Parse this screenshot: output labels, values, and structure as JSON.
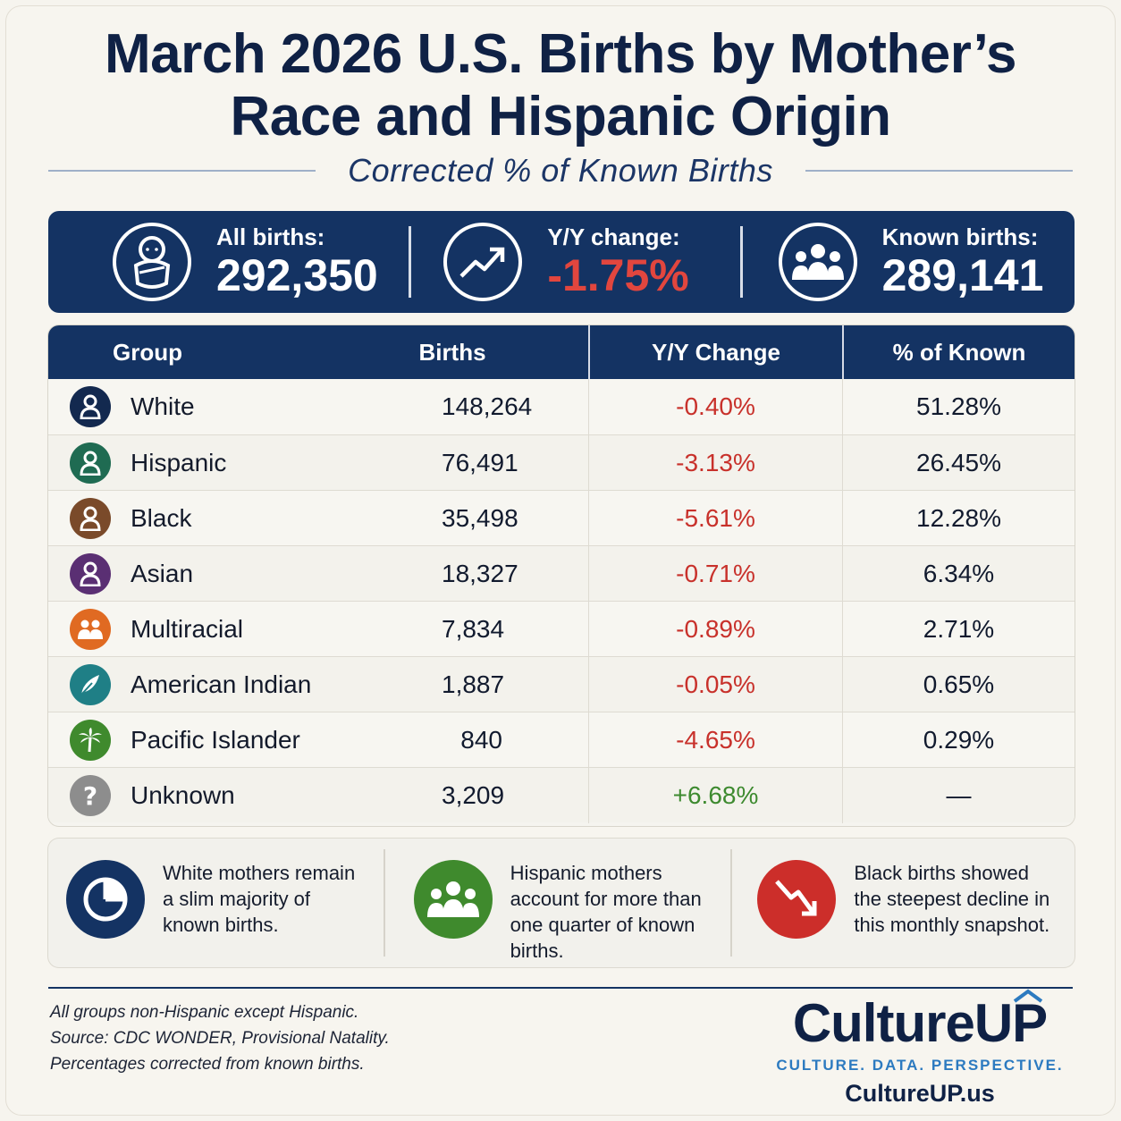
{
  "title_line1": "March 2026 U.S. Births by Mother’s",
  "title_line2": "Race and Hispanic Origin",
  "subtitle": "Corrected % of Known Births",
  "stats": [
    {
      "label": "All births:",
      "value": "292,350",
      "icon": "baby-icon"
    },
    {
      "label": "Y/Y change:",
      "value": "-1.75%",
      "icon": "trend-up-icon"
    },
    {
      "label": "Known births:",
      "value": "289,141",
      "icon": "group-icon"
    }
  ],
  "chart_data": {
    "type": "table",
    "columns": [
      "Group",
      "Births",
      "Y/Y Change",
      "% of Known"
    ],
    "rows": [
      {
        "group": "White",
        "births": "148,264",
        "yoy": "-0.40%",
        "pct": "51.28%",
        "color": "#13294f",
        "icon": "person-icon"
      },
      {
        "group": "Hispanic",
        "births": "76,491",
        "yoy": "-3.13%",
        "pct": "26.45%",
        "color": "#1f6b52",
        "icon": "person-icon"
      },
      {
        "group": "Black",
        "births": "35,498",
        "yoy": "-5.61%",
        "pct": "12.28%",
        "color": "#7a4a2a",
        "icon": "person-icon"
      },
      {
        "group": "Asian",
        "births": "18,327",
        "yoy": "-0.71%",
        "pct": "6.34%",
        "color": "#5a2f73",
        "icon": "person-icon"
      },
      {
        "group": "Multiracial",
        "births": "7,834",
        "yoy": "-0.89%",
        "pct": "2.71%",
        "color": "#e06a22",
        "icon": "multi-person-icon"
      },
      {
        "group": "American Indian",
        "births": "1,887",
        "yoy": "-0.05%",
        "pct": "0.65%",
        "color": "#1f7f86",
        "icon": "feather-icon"
      },
      {
        "group": "Pacific Islander",
        "births": "840",
        "yoy": "-4.65%",
        "pct": "0.29%",
        "color": "#3f8a2d",
        "icon": "palm-tree-icon"
      },
      {
        "group": "Unknown",
        "births": "3,209",
        "yoy": "+6.68%",
        "pct": "—",
        "color": "#8d8d8d",
        "icon": "question-icon"
      }
    ]
  },
  "insights": [
    {
      "text": "White mothers remain a slim majority of known births.",
      "color": "#143363",
      "icon": "pie-chart-icon"
    },
    {
      "text": "Hispanic mothers account for more than one quarter of known births.",
      "color": "#3f8a2d",
      "icon": "group-icon"
    },
    {
      "text": "Black births showed the steepest decline in this monthly snapshot.",
      "color": "#cc2e2a",
      "icon": "trend-down-icon"
    }
  ],
  "notes": [
    "All groups non-Hispanic except Hispanic.",
    "Source: CDC WONDER, Provisional Natality.",
    "Percentages corrected from known births."
  ],
  "brand": {
    "name_part1": "Culture",
    "name_part2": "UP",
    "tagline": "CULTURE. DATA. PERSPECTIVE.",
    "url": "CultureUP.us"
  }
}
